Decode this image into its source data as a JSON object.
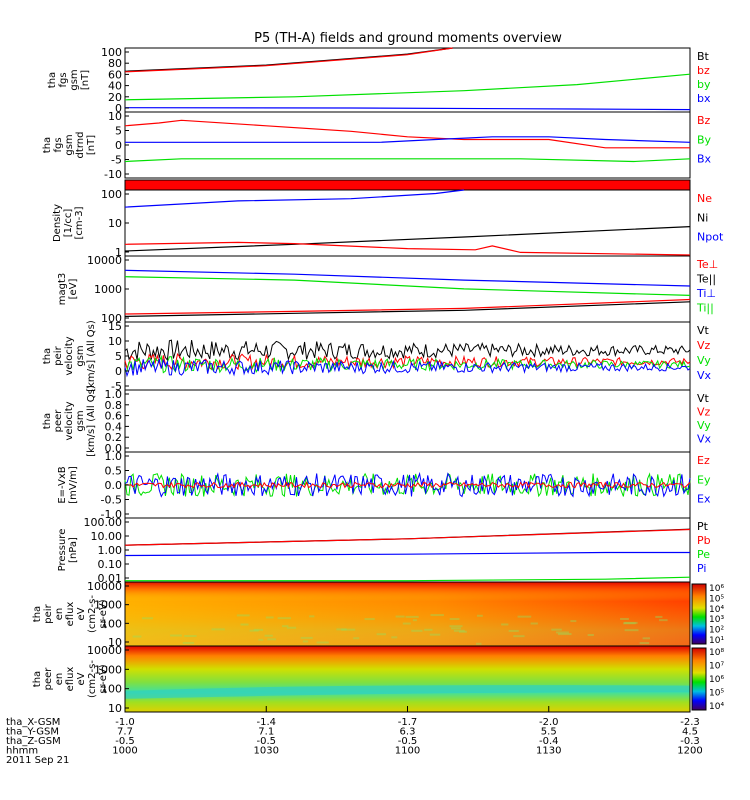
{
  "title": "P5 (TH-A) fields and ground moments overview",
  "colors": {
    "black": "#000000",
    "red": "#ff0000",
    "green": "#00e000",
    "blue": "#0000ff"
  },
  "chart_data": [
    {
      "type": "line",
      "name": "fgs_gsm_nT",
      "ylabel": [
        "tha",
        "fgs",
        "gsm",
        "[nT]"
      ],
      "ticks": [
        "100",
        "80",
        "60",
        "40",
        "20",
        "0"
      ],
      "ylim": [
        -5,
        100
      ],
      "legend": [
        {
          "label": "Bt",
          "color": "black"
        },
        {
          "label": "bz",
          "color": "red"
        },
        {
          "label": "by",
          "color": "green"
        },
        {
          "label": "bx",
          "color": "blue"
        }
      ],
      "series": [
        {
          "color": "black",
          "points": [
            [
              0,
              62
            ],
            [
              0.25,
              72
            ],
            [
              0.5,
              90
            ],
            [
              0.58,
              100
            ]
          ]
        },
        {
          "color": "red",
          "points": [
            [
              0,
              61
            ],
            [
              0.25,
              71
            ],
            [
              0.5,
              89
            ],
            [
              0.58,
              100
            ]
          ]
        },
        {
          "color": "green",
          "points": [
            [
              0,
              15
            ],
            [
              0.3,
              20
            ],
            [
              0.6,
              30
            ],
            [
              0.8,
              40
            ],
            [
              1,
              57
            ]
          ]
        },
        {
          "color": "blue",
          "points": [
            [
              0,
              2
            ],
            [
              0.4,
              1.5
            ],
            [
              0.8,
              0
            ],
            [
              1,
              -1
            ]
          ]
        }
      ]
    },
    {
      "type": "line",
      "name": "fgs_gsm_dtrnd",
      "ylabel": [
        "tha",
        "fgs",
        "gsm",
        "dtrnd",
        "[nT]"
      ],
      "ticks": [
        "10",
        "5",
        "0",
        "-5",
        "-10"
      ],
      "ylim": [
        -12,
        12
      ],
      "legend": [
        {
          "label": "Bz",
          "color": "red"
        },
        {
          "label": "By",
          "color": "green"
        },
        {
          "label": "Bx",
          "color": "blue"
        }
      ],
      "series": [
        {
          "color": "red",
          "points": [
            [
              0,
              7
            ],
            [
              0.06,
              8
            ],
            [
              0.1,
              9
            ],
            [
              0.25,
              7
            ],
            [
              0.4,
              5
            ],
            [
              0.5,
              3
            ],
            [
              0.6,
              2
            ],
            [
              0.75,
              2
            ],
            [
              0.85,
              -1
            ],
            [
              1,
              -1
            ]
          ]
        },
        {
          "color": "blue",
          "points": [
            [
              0,
              1
            ],
            [
              0.2,
              1
            ],
            [
              0.35,
              1
            ],
            [
              0.45,
              1
            ],
            [
              0.55,
              2
            ],
            [
              0.65,
              3
            ],
            [
              0.75,
              3
            ],
            [
              0.85,
              2
            ],
            [
              1,
              1
            ]
          ]
        },
        {
          "color": "green",
          "points": [
            [
              0,
              -6
            ],
            [
              0.1,
              -5
            ],
            [
              0.3,
              -5
            ],
            [
              0.5,
              -5
            ],
            [
              0.7,
              -5
            ],
            [
              0.9,
              -6
            ],
            [
              1,
              -5
            ]
          ]
        }
      ]
    },
    {
      "type": "line",
      "name": "density",
      "ylabel": [
        "Density",
        "[1/cc]",
        "[cm-3]"
      ],
      "ticks": [
        "100",
        "10",
        "1"
      ],
      "scale": "log",
      "ylim": [
        0.5,
        250
      ],
      "legend": [
        {
          "label": "Ne",
          "color": "red"
        },
        {
          "label": "Ni",
          "color": "black"
        },
        {
          "label": "Npot",
          "color": "blue"
        }
      ],
      "series": [
        {
          "color": "blue",
          "points": [
            [
              0,
              50
            ],
            [
              0.2,
              90
            ],
            [
              0.4,
              110
            ],
            [
              0.55,
              180
            ],
            [
              0.58,
              220
            ],
            [
              0.6,
              250
            ]
          ]
        },
        {
          "color": "black",
          "points": [
            [
              0,
              0.8
            ],
            [
              0.3,
              1.5
            ],
            [
              0.6,
              3
            ],
            [
              1,
              8
            ]
          ]
        },
        {
          "color": "red",
          "points": [
            [
              0,
              1.5
            ],
            [
              0.2,
              1.8
            ],
            [
              0.3,
              1.6
            ],
            [
              0.5,
              1
            ],
            [
              0.62,
              0.9
            ],
            [
              0.65,
              1.3
            ],
            [
              0.7,
              0.7
            ],
            [
              1,
              0.55
            ]
          ]
        }
      ]
    },
    {
      "type": "line",
      "name": "temperature",
      "ylabel": [
        "magt3",
        "[eV]"
      ],
      "ticks": [
        "10000",
        "1000",
        "100"
      ],
      "scale": "log",
      "ylim": [
        40,
        12000
      ],
      "legend": [
        {
          "label": "Te⊥",
          "color": "red"
        },
        {
          "label": "Te||",
          "color": "black"
        },
        {
          "label": "Ti⊥",
          "color": "blue"
        },
        {
          "label": "Ti||",
          "color": "green"
        }
      ],
      "series": [
        {
          "color": "blue",
          "points": [
            [
              0,
              3500
            ],
            [
              0.3,
              2500
            ],
            [
              0.6,
              1500
            ],
            [
              1,
              900
            ]
          ]
        },
        {
          "color": "green",
          "points": [
            [
              0,
              2000
            ],
            [
              0.3,
              1500
            ],
            [
              0.6,
              700
            ],
            [
              1,
              400
            ]
          ]
        },
        {
          "color": "red",
          "points": [
            [
              0,
              80
            ],
            [
              0.3,
              100
            ],
            [
              0.6,
              130
            ],
            [
              1,
              280
            ]
          ]
        },
        {
          "color": "black",
          "points": [
            [
              0,
              65
            ],
            [
              0.3,
              85
            ],
            [
              0.6,
              110
            ],
            [
              1,
              230
            ]
          ]
        }
      ]
    },
    {
      "type": "noise",
      "name": "peir_velocity",
      "ylabel": [
        "tha",
        "peir",
        "velocity",
        "gsm",
        "[km/s] (All Qs)"
      ],
      "ticks": [
        "15",
        "10",
        "5",
        "0",
        "-5"
      ],
      "ylim": [
        -8,
        16
      ],
      "legend": [
        {
          "label": "Vt",
          "color": "black"
        },
        {
          "label": "Vz",
          "color": "red"
        },
        {
          "label": "Vy",
          "color": "green"
        },
        {
          "label": "Vx",
          "color": "blue"
        }
      ],
      "series": [
        {
          "color": "black",
          "mean": 6,
          "amp": 4
        },
        {
          "color": "red",
          "mean": 2,
          "amp": 3
        },
        {
          "color": "green",
          "mean": 1,
          "amp": 3
        },
        {
          "color": "blue",
          "mean": 0,
          "amp": 3
        }
      ]
    },
    {
      "type": "empty",
      "name": "peer_velocity",
      "ylabel": [
        "tha",
        "peer",
        "velocity",
        "gsm",
        "[km/s] (All Qs)"
      ],
      "ticks": [
        "1.0",
        "0.8",
        "0.6",
        "0.4",
        "0.2",
        "0.0"
      ],
      "ylim": [
        0,
        1
      ],
      "legend": [
        {
          "label": "Vt",
          "color": "black"
        },
        {
          "label": "Vz",
          "color": "red"
        },
        {
          "label": "Vy",
          "color": "green"
        },
        {
          "label": "Vx",
          "color": "blue"
        }
      ],
      "series": []
    },
    {
      "type": "noise",
      "name": "efield",
      "ylabel": [
        "E=-VxB",
        "[mV/m]"
      ],
      "ticks": [
        "1.0",
        "0.5",
        "0.0",
        "-0.5",
        "-1.0"
      ],
      "ylim": [
        -1,
        1
      ],
      "legend": [
        {
          "label": "Ez",
          "color": "red"
        },
        {
          "label": "Ey",
          "color": "green"
        },
        {
          "label": "Ex",
          "color": "blue"
        }
      ],
      "series": [
        {
          "color": "green",
          "mean": 0,
          "amp": 0.35
        },
        {
          "color": "blue",
          "mean": 0,
          "amp": 0.35
        },
        {
          "color": "red",
          "mean": 0,
          "amp": 0.08
        }
      ]
    },
    {
      "type": "line",
      "name": "pressure",
      "ylabel": [
        "Pressure",
        "[nPa]"
      ],
      "ticks": [
        "100.00",
        "10.00",
        "1.00",
        "0.10",
        "0.01"
      ],
      "scale": "log",
      "ylim": [
        0.01,
        100
      ],
      "legend": [
        {
          "label": "Pt",
          "color": "black"
        },
        {
          "label": "Pb",
          "color": "red"
        },
        {
          "label": "Pe",
          "color": "green"
        },
        {
          "label": "Pi",
          "color": "blue"
        }
      ],
      "series": [
        {
          "color": "black",
          "points": [
            [
              0,
              2
            ],
            [
              0.5,
              5
            ],
            [
              1,
              20
            ]
          ]
        },
        {
          "color": "red",
          "points": [
            [
              0,
              2
            ],
            [
              0.5,
              5
            ],
            [
              1,
              19
            ]
          ]
        },
        {
          "color": "blue",
          "points": [
            [
              0,
              0.45
            ],
            [
              0.5,
              0.55
            ],
            [
              0.85,
              0.7
            ],
            [
              1,
              0.7
            ]
          ]
        },
        {
          "color": "green",
          "points": [
            [
              0,
              0.012
            ],
            [
              0.5,
              0.012
            ],
            [
              0.85,
              0.015
            ],
            [
              1,
              0.02
            ]
          ]
        }
      ]
    },
    {
      "type": "heatmap",
      "name": "peir_en_eflux",
      "ylabel": [
        "tha",
        "peir",
        "en",
        "eflux",
        "eV",
        "(cm2-s-",
        "sr-eV)"
      ],
      "ticks": [
        "10000",
        "1000",
        "100",
        "10"
      ],
      "colorbar": [
        "10⁶",
        "10⁵",
        "10⁴",
        "10³",
        "10²",
        "10¹"
      ]
    },
    {
      "type": "heatmap",
      "name": "peer_en_eflux",
      "ylabel": [
        "tha",
        "peer",
        "en",
        "eflux",
        "eV",
        "(cm2-s-",
        "sr-eV)"
      ],
      "ticks": [
        "10000",
        "1000",
        "100",
        "10"
      ],
      "colorbar": [
        "10⁸",
        "10⁷",
        "10⁶",
        "10⁵",
        "10⁴"
      ]
    }
  ],
  "x_axis": {
    "rows": [
      {
        "label": "tha_X-GSM",
        "values": [
          "-1.0",
          "-1.4",
          "-1.7",
          "-2.0",
          "-2.3"
        ]
      },
      {
        "label": "tha_Y-GSM",
        "values": [
          "7.7",
          "7.1",
          "6.3",
          "5.5",
          "4.5"
        ]
      },
      {
        "label": "tha_Z-GSM",
        "values": [
          "-0.5",
          "-0.5",
          "-0.5",
          "-0.4",
          "-0.3"
        ]
      },
      {
        "label": "hhmm",
        "values": [
          "1000",
          "1030",
          "1100",
          "1130",
          "1200"
        ]
      }
    ],
    "date": "2011 Sep 21"
  }
}
